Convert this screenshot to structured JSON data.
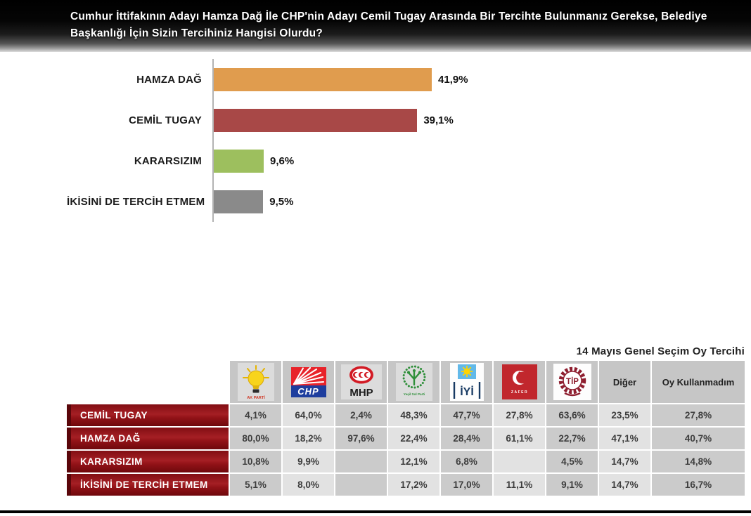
{
  "header": {
    "question": "Cumhur İttifakının Adayı Hamza Dağ İle CHP'nin Adayı Cemil Tugay Arasında Bir Tercihte Bulunmanız Gerekse, Belediye Başkanlığı İçin Sizin Tercihiniz Hangisi Olurdu?"
  },
  "chart_data": {
    "type": "bar",
    "orientation": "horizontal",
    "categories": [
      "HAMZA DAĞ",
      "CEMİL TUGAY",
      "KARARSIZIM",
      "İKİSİNİ DE TERCİH ETMEM"
    ],
    "values": [
      41.9,
      39.1,
      9.6,
      9.5
    ],
    "value_labels": [
      "41,9%",
      "39,1%",
      "9,6%",
      "9,5%"
    ],
    "colors": [
      "#E09C4E",
      "#A84847",
      "#9DBF5E",
      "#8A8A8A"
    ],
    "xlim": [
      0,
      50
    ],
    "grid": false,
    "legend": false
  },
  "table": {
    "title": "14 Mayıs Genel Seçim Oy Tercihi",
    "columns": [
      {
        "id": "akp",
        "name": "AK Parti",
        "logo_text": "AK PARTİ",
        "type": "logo"
      },
      {
        "id": "chp",
        "name": "CHP",
        "logo_text": "CHP",
        "type": "logo"
      },
      {
        "id": "mhp",
        "name": "MHP",
        "logo_text": "MHP",
        "type": "logo"
      },
      {
        "id": "yesilsol",
        "name": "Yeşil Sol Parti",
        "logo_text": "Yeşil Sol Parti",
        "type": "logo"
      },
      {
        "id": "iyi",
        "name": "İYİ Parti",
        "logo_text": "İYİ",
        "type": "logo"
      },
      {
        "id": "zafer",
        "name": "Zafer Partisi",
        "logo_text": "ZAFER",
        "type": "logo"
      },
      {
        "id": "tip",
        "name": "TİP",
        "logo_text": "TİP",
        "type": "logo"
      },
      {
        "id": "diger",
        "name": "Diğer",
        "label": "Diğer",
        "type": "text"
      },
      {
        "id": "oy",
        "name": "Oy Kullanmadım",
        "label": "Oy Kullanmadım",
        "type": "text"
      }
    ],
    "rows": [
      {
        "label": "CEMİL TUGAY",
        "values": [
          "4,1%",
          "64,0%",
          "2,4%",
          "48,3%",
          "47,7%",
          "27,8%",
          "63,6%",
          "23,5%",
          "27,8%"
        ]
      },
      {
        "label": "HAMZA DAĞ",
        "values": [
          "80,0%",
          "18,2%",
          "97,6%",
          "22,4%",
          "28,4%",
          "61,1%",
          "22,7%",
          "47,1%",
          "40,7%"
        ]
      },
      {
        "label": "KARARSIZIM",
        "values": [
          "10,8%",
          "9,9%",
          "",
          "12,1%",
          "6,8%",
          "",
          "4,5%",
          "14,7%",
          "14,8%"
        ]
      },
      {
        "label": "İKİSİNİ DE TERCİH ETMEM",
        "values": [
          "5,1%",
          "8,0%",
          "",
          "17,2%",
          "17,0%",
          "11,1%",
          "9,1%",
          "14,7%",
          "16,7%"
        ]
      }
    ]
  },
  "colors": {
    "banner_top": "#000000",
    "row_label_red": "#8e1216",
    "cell_dark": "#cbcbcb",
    "cell_light": "#e2e2e2",
    "bottom_rule": "#000000"
  }
}
